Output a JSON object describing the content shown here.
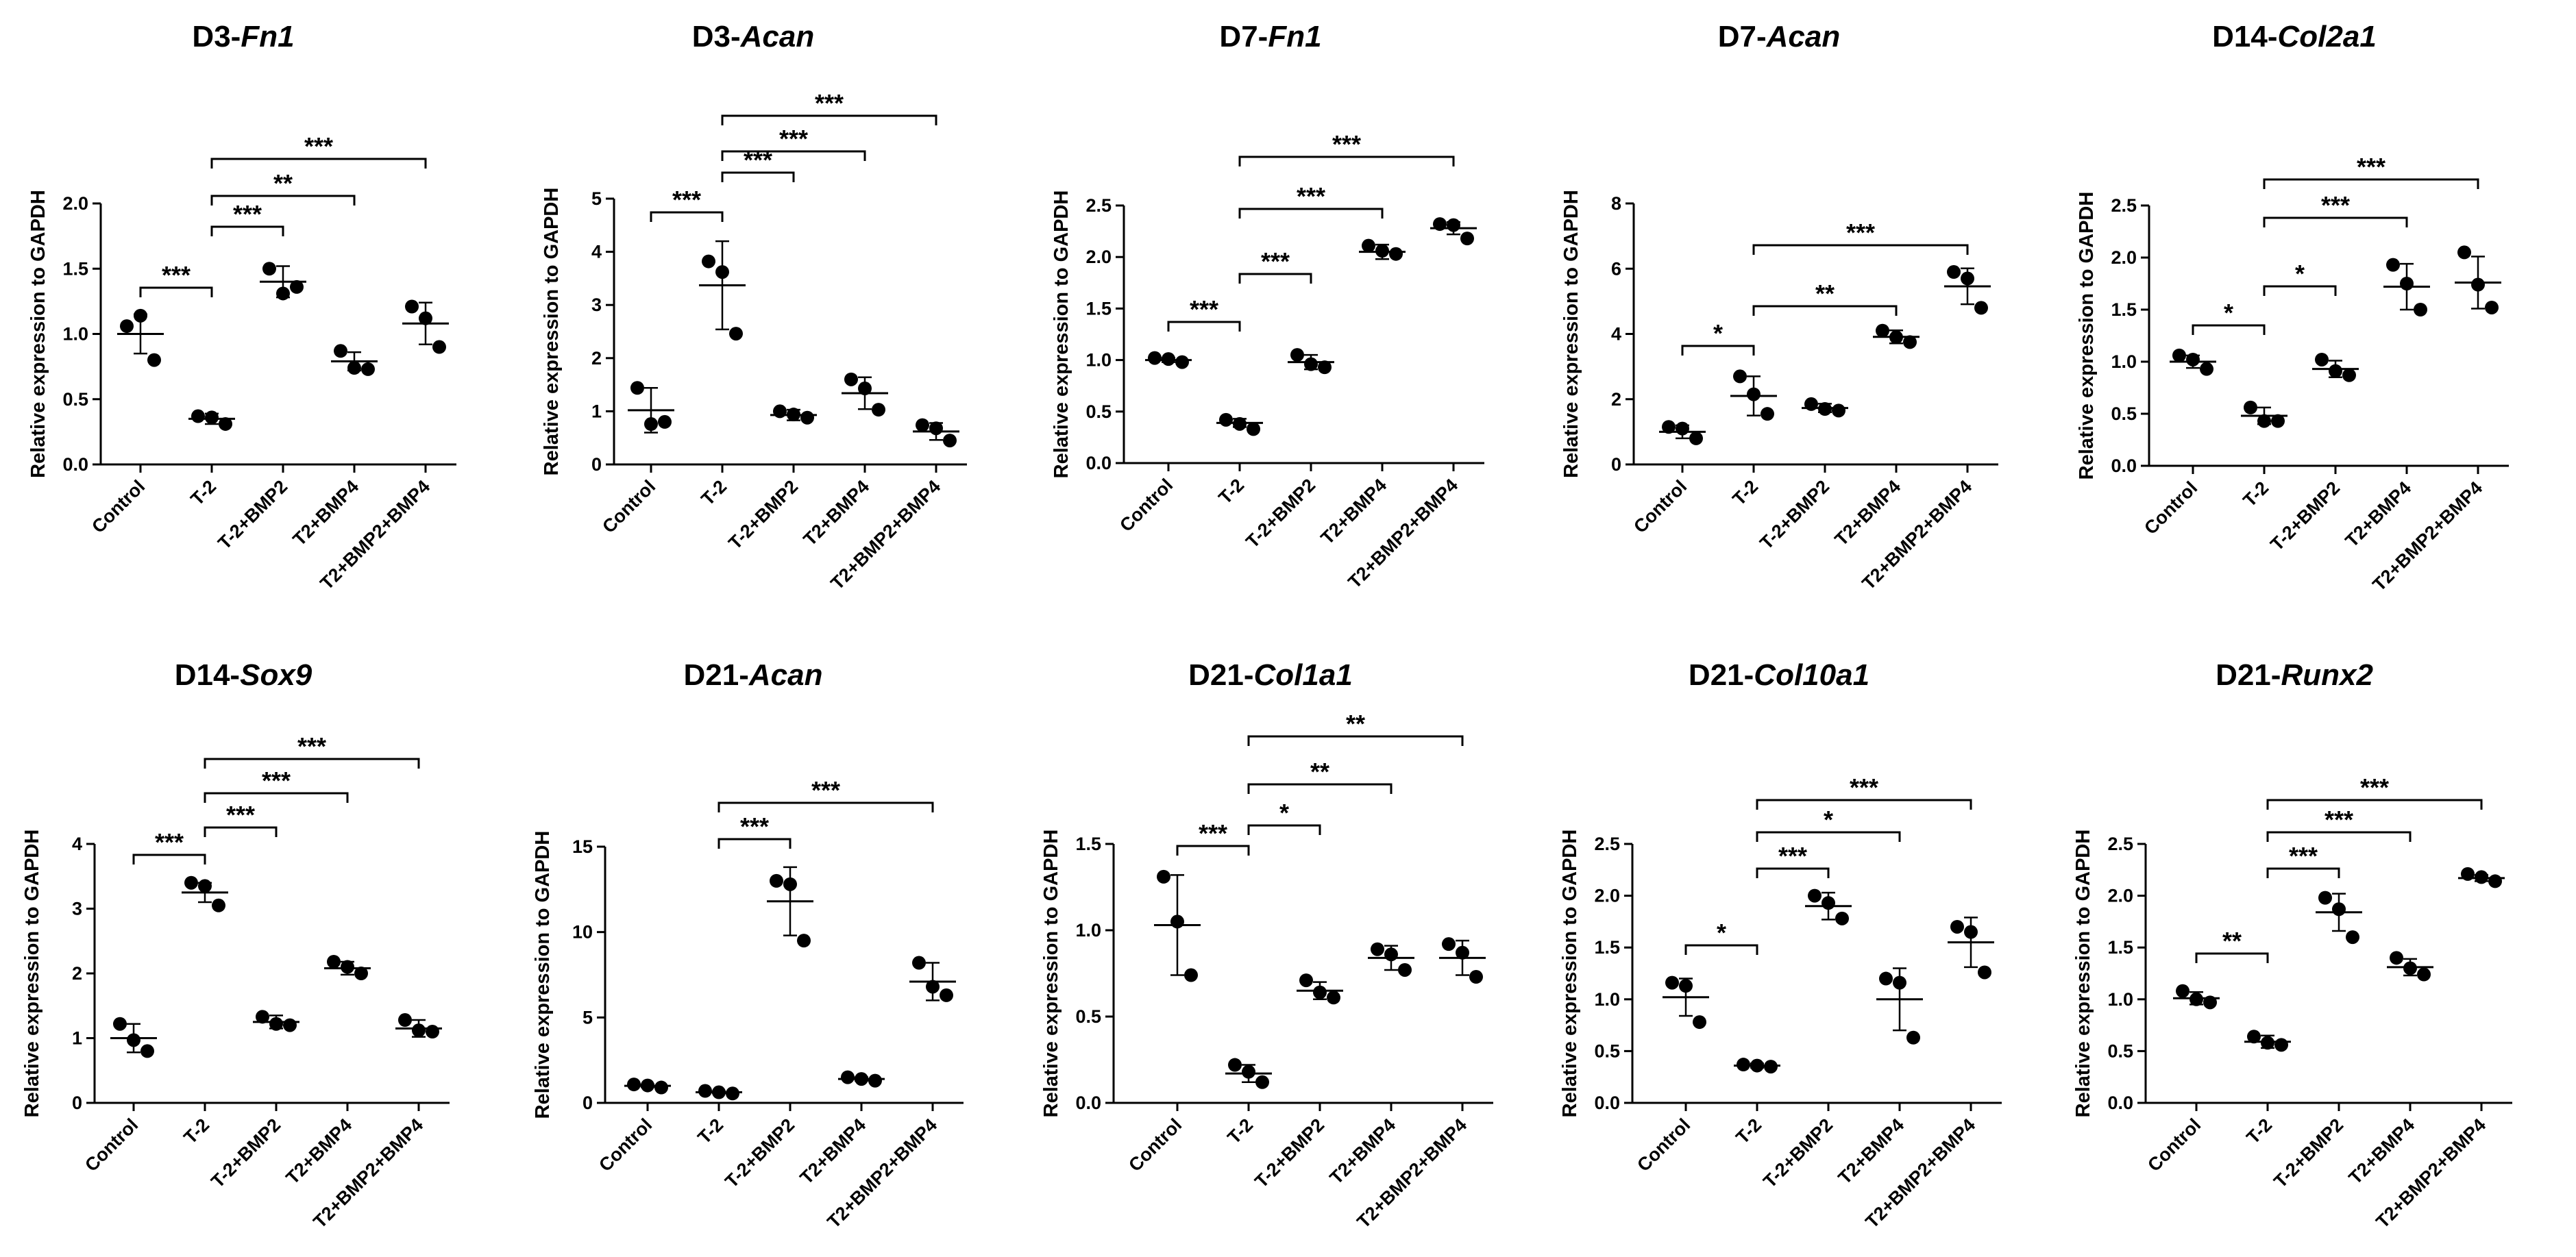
{
  "chart_data": [
    {
      "type": "scatter",
      "title_prefix": "D3-",
      "gene": "Fn1",
      "ylabel": "Relative expression to GAPDH",
      "categories": [
        "Control",
        "T-2",
        "T-2+BMP2",
        "T2+BMP4",
        "T2+BMP2+BMP4"
      ],
      "ylim": [
        0,
        2.0
      ],
      "yticks": [
        "0.0",
        "0.5",
        "1.0",
        "1.5",
        "2.0"
      ],
      "means": [
        1.0,
        0.35,
        1.4,
        0.79,
        1.08
      ],
      "sds": [
        0.15,
        0.04,
        0.12,
        0.07,
        0.16
      ],
      "points": [
        [
          1.06,
          1.14,
          0.8
        ],
        [
          0.37,
          0.36,
          0.31
        ],
        [
          1.5,
          1.31,
          1.36
        ],
        [
          0.87,
          0.74,
          0.73
        ],
        [
          1.21,
          1.12,
          0.9
        ]
      ],
      "significance": [
        {
          "from": 0,
          "to": 1,
          "label": "***"
        },
        {
          "from": 1,
          "to": 2,
          "label": "***"
        },
        {
          "from": 1,
          "to": 3,
          "label": "**"
        },
        {
          "from": 1,
          "to": 4,
          "label": "***"
        }
      ]
    },
    {
      "type": "scatter",
      "title_prefix": "D3-",
      "gene": "Acan",
      "ylabel": "Relative expression to GAPDH",
      "categories": [
        "Control",
        "T-2",
        "T-2+BMP2",
        "T2+BMP4",
        "T2+BMP2+BMP4"
      ],
      "ylim": [
        0,
        5
      ],
      "yticks": [
        "0",
        "1",
        "2",
        "3",
        "4",
        "5"
      ],
      "means": [
        1.02,
        3.37,
        0.93,
        1.34,
        0.62
      ],
      "sds": [
        0.42,
        0.83,
        0.1,
        0.3,
        0.16
      ],
      "points": [
        [
          1.44,
          0.76,
          0.8
        ],
        [
          3.82,
          3.62,
          2.46
        ],
        [
          1.0,
          0.94,
          0.88
        ],
        [
          1.6,
          1.43,
          1.03
        ],
        [
          0.74,
          0.68,
          0.45
        ]
      ],
      "significance": [
        {
          "from": 0,
          "to": 1,
          "label": "***"
        },
        {
          "from": 1,
          "to": 2,
          "label": "***"
        },
        {
          "from": 1,
          "to": 3,
          "label": "***"
        },
        {
          "from": 1,
          "to": 4,
          "label": "***"
        }
      ]
    },
    {
      "type": "scatter",
      "title_prefix": "D7-",
      "gene": "Fn1",
      "ylabel": "Relative expression to GAPDH",
      "categories": [
        "Control",
        "T-2",
        "T-2+BMP2",
        "T2+BMP4",
        "T2+BMP2+BMP4"
      ],
      "ylim": [
        0,
        2.5
      ],
      "yticks": [
        "0.0",
        "0.5",
        "1.0",
        "1.5",
        "2.0",
        "2.5"
      ],
      "means": [
        1.0,
        0.39,
        0.98,
        2.05,
        2.28
      ],
      "sds": [
        0.02,
        0.04,
        0.07,
        0.07,
        0.06
      ],
      "points": [
        [
          1.02,
          1.01,
          0.98
        ],
        [
          0.42,
          0.38,
          0.33
        ],
        [
          1.05,
          0.96,
          0.93
        ],
        [
          2.11,
          2.06,
          2.03
        ],
        [
          2.32,
          2.31,
          2.18
        ]
      ],
      "significance": [
        {
          "from": 0,
          "to": 1,
          "label": "***"
        },
        {
          "from": 1,
          "to": 2,
          "label": "***"
        },
        {
          "from": 1,
          "to": 3,
          "label": "***"
        },
        {
          "from": 1,
          "to": 4,
          "label": "***"
        }
      ]
    },
    {
      "type": "scatter",
      "title_prefix": "D7-",
      "gene": "Acan",
      "ylabel": "Relative expression to GAPDH",
      "categories": [
        "Control",
        "T-2",
        "T-2+BMP2",
        "T2+BMP4",
        "T2+BMP2+BMP4"
      ],
      "ylim": [
        0,
        8
      ],
      "yticks": [
        "0",
        "2",
        "4",
        "6",
        "8"
      ],
      "means": [
        1.0,
        2.1,
        1.73,
        3.91,
        5.46
      ],
      "sds": [
        0.2,
        0.6,
        0.13,
        0.2,
        0.55
      ],
      "points": [
        [
          1.15,
          1.1,
          0.8
        ],
        [
          2.7,
          2.15,
          1.55
        ],
        [
          1.85,
          1.7,
          1.65
        ],
        [
          4.1,
          3.9,
          3.75
        ],
        [
          5.9,
          5.7,
          4.8
        ]
      ],
      "significance": [
        {
          "from": 0,
          "to": 1,
          "label": "*"
        },
        {
          "from": 1,
          "to": 3,
          "label": "**"
        },
        {
          "from": 1,
          "to": 4,
          "label": "***"
        }
      ]
    },
    {
      "type": "scatter",
      "title_prefix": "D14-",
      "gene": "Col2a1",
      "ylabel": "Relative expression to GAPDH",
      "categories": [
        "Control",
        "T-2",
        "T-2+BMP2",
        "T2+BMP4",
        "T2+BMP2+BMP4"
      ],
      "ylim": [
        0,
        2.5
      ],
      "yticks": [
        "0.0",
        "0.5",
        "1.0",
        "1.5",
        "2.0",
        "2.5"
      ],
      "means": [
        1.0,
        0.48,
        0.93,
        1.72,
        1.76
      ],
      "sds": [
        0.06,
        0.08,
        0.08,
        0.22,
        0.25
      ],
      "points": [
        [
          1.06,
          1.02,
          0.93
        ],
        [
          0.56,
          0.43,
          0.43
        ],
        [
          1.02,
          0.91,
          0.87
        ],
        [
          1.93,
          1.75,
          1.5
        ],
        [
          2.05,
          1.74,
          1.52
        ]
      ],
      "significance": [
        {
          "from": 0,
          "to": 1,
          "label": "*"
        },
        {
          "from": 1,
          "to": 2,
          "label": "*"
        },
        {
          "from": 1,
          "to": 3,
          "label": "***"
        },
        {
          "from": 1,
          "to": 4,
          "label": "***"
        }
      ]
    },
    {
      "type": "scatter",
      "title_prefix": "D14-",
      "gene": "Sox9",
      "ylabel": "Relative expression to GAPDH",
      "categories": [
        "Control",
        "T-2",
        "T-2+BMP2",
        "T2+BMP4",
        "T2+BMP2+BMP4"
      ],
      "ylim": [
        0,
        4
      ],
      "yticks": [
        "0",
        "1",
        "2",
        "3",
        "4"
      ],
      "means": [
        1.0,
        3.25,
        1.25,
        2.08,
        1.15
      ],
      "sds": [
        0.22,
        0.15,
        0.1,
        0.1,
        0.13
      ],
      "points": [
        [
          1.22,
          0.97,
          0.8
        ],
        [
          3.4,
          3.35,
          3.05
        ],
        [
          1.33,
          1.22,
          1.2
        ],
        [
          2.18,
          2.1,
          2.0
        ],
        [
          1.28,
          1.12,
          1.1
        ]
      ],
      "significance": [
        {
          "from": 0,
          "to": 1,
          "label": "***"
        },
        {
          "from": 1,
          "to": 2,
          "label": "***"
        },
        {
          "from": 1,
          "to": 3,
          "label": "***"
        },
        {
          "from": 1,
          "to": 4,
          "label": "***"
        }
      ]
    },
    {
      "type": "scatter",
      "title_prefix": "D21-",
      "gene": "Acan",
      "ylabel": "Relative expression to GAPDH",
      "categories": [
        "Control",
        "T-2",
        "T-2+BMP2",
        "T2+BMP4",
        "T2+BMP2+BMP4"
      ],
      "ylim": [
        0,
        15
      ],
      "yticks": [
        "0",
        "5",
        "10",
        "15"
      ],
      "means": [
        1.0,
        0.62,
        11.8,
        1.4,
        7.1
      ],
      "sds": [
        0.08,
        0.06,
        2.0,
        0.1,
        1.1
      ],
      "points": [
        [
          1.08,
          1.02,
          0.9
        ],
        [
          0.7,
          0.62,
          0.55
        ],
        [
          13.0,
          12.8,
          9.5
        ],
        [
          1.5,
          1.4,
          1.3
        ],
        [
          8.2,
          6.8,
          6.3
        ]
      ],
      "significance": [
        {
          "from": 1,
          "to": 2,
          "label": "***"
        },
        {
          "from": 1,
          "to": 4,
          "label": "***"
        }
      ]
    },
    {
      "type": "scatter",
      "title_prefix": "D21-",
      "gene": "Col1a1",
      "ylabel": "Relative expression to GAPDH",
      "categories": [
        "Control",
        "T-2",
        "T-2+BMP2",
        "T2+BMP4",
        "T2+BMP2+BMP4"
      ],
      "ylim": [
        0,
        1.5
      ],
      "yticks": [
        "0.0",
        "0.5",
        "1.0",
        "1.5"
      ],
      "means": [
        1.03,
        0.17,
        0.65,
        0.84,
        0.84
      ],
      "sds": [
        0.29,
        0.05,
        0.05,
        0.07,
        0.1
      ],
      "points": [
        [
          1.31,
          1.05,
          0.74
        ],
        [
          0.22,
          0.18,
          0.12
        ],
        [
          0.71,
          0.64,
          0.61
        ],
        [
          0.89,
          0.86,
          0.77
        ],
        [
          0.92,
          0.87,
          0.73
        ]
      ],
      "significance": [
        {
          "from": 0,
          "to": 1,
          "label": "***"
        },
        {
          "from": 1,
          "to": 2,
          "label": "*"
        },
        {
          "from": 1,
          "to": 3,
          "label": "**"
        },
        {
          "from": 1,
          "to": 4,
          "label": "**"
        }
      ]
    },
    {
      "type": "scatter",
      "title_prefix": "D21-",
      "gene": "Col10a1",
      "ylabel": "Relative expression to GAPDH",
      "categories": [
        "Control",
        "T-2",
        "T-2+BMP2",
        "T2+BMP4",
        "T2+BMP2+BMP4"
      ],
      "ylim": [
        0,
        2.5
      ],
      "yticks": [
        "0.0",
        "0.5",
        "1.0",
        "1.5",
        "2.0",
        "2.5"
      ],
      "means": [
        1.02,
        0.36,
        1.9,
        1.0,
        1.55
      ],
      "sds": [
        0.18,
        0.02,
        0.13,
        0.3,
        0.24
      ],
      "points": [
        [
          1.16,
          1.13,
          0.78
        ],
        [
          0.37,
          0.36,
          0.35
        ],
        [
          2.0,
          1.93,
          1.78
        ],
        [
          1.2,
          1.16,
          0.63
        ],
        [
          1.7,
          1.65,
          1.26
        ]
      ],
      "significance": [
        {
          "from": 0,
          "to": 1,
          "label": "*"
        },
        {
          "from": 1,
          "to": 2,
          "label": "***"
        },
        {
          "from": 1,
          "to": 3,
          "label": "*"
        },
        {
          "from": 1,
          "to": 4,
          "label": "***"
        }
      ]
    },
    {
      "type": "scatter",
      "title_prefix": "D21-",
      "gene": "Runx2",
      "ylabel": "Relative expression to GAPDH",
      "categories": [
        "Control",
        "T-2",
        "T-2+BMP2",
        "T2+BMP4",
        "T2+BMP2+BMP4"
      ],
      "ylim": [
        0,
        2.5
      ],
      "yticks": [
        "0.0",
        "0.5",
        "1.0",
        "1.5",
        "2.0",
        "2.5"
      ],
      "means": [
        1.01,
        0.59,
        1.84,
        1.31,
        2.17
      ],
      "sds": [
        0.06,
        0.06,
        0.18,
        0.08,
        0.03
      ],
      "points": [
        [
          1.08,
          1.0,
          0.97
        ],
        [
          0.64,
          0.58,
          0.56
        ],
        [
          1.98,
          1.87,
          1.6
        ],
        [
          1.4,
          1.3,
          1.24
        ],
        [
          2.21,
          2.18,
          2.14
        ]
      ],
      "significance": [
        {
          "from": 0,
          "to": 1,
          "label": "**"
        },
        {
          "from": 1,
          "to": 2,
          "label": "***"
        },
        {
          "from": 1,
          "to": 3,
          "label": "***"
        },
        {
          "from": 1,
          "to": 4,
          "label": "***"
        }
      ]
    }
  ]
}
